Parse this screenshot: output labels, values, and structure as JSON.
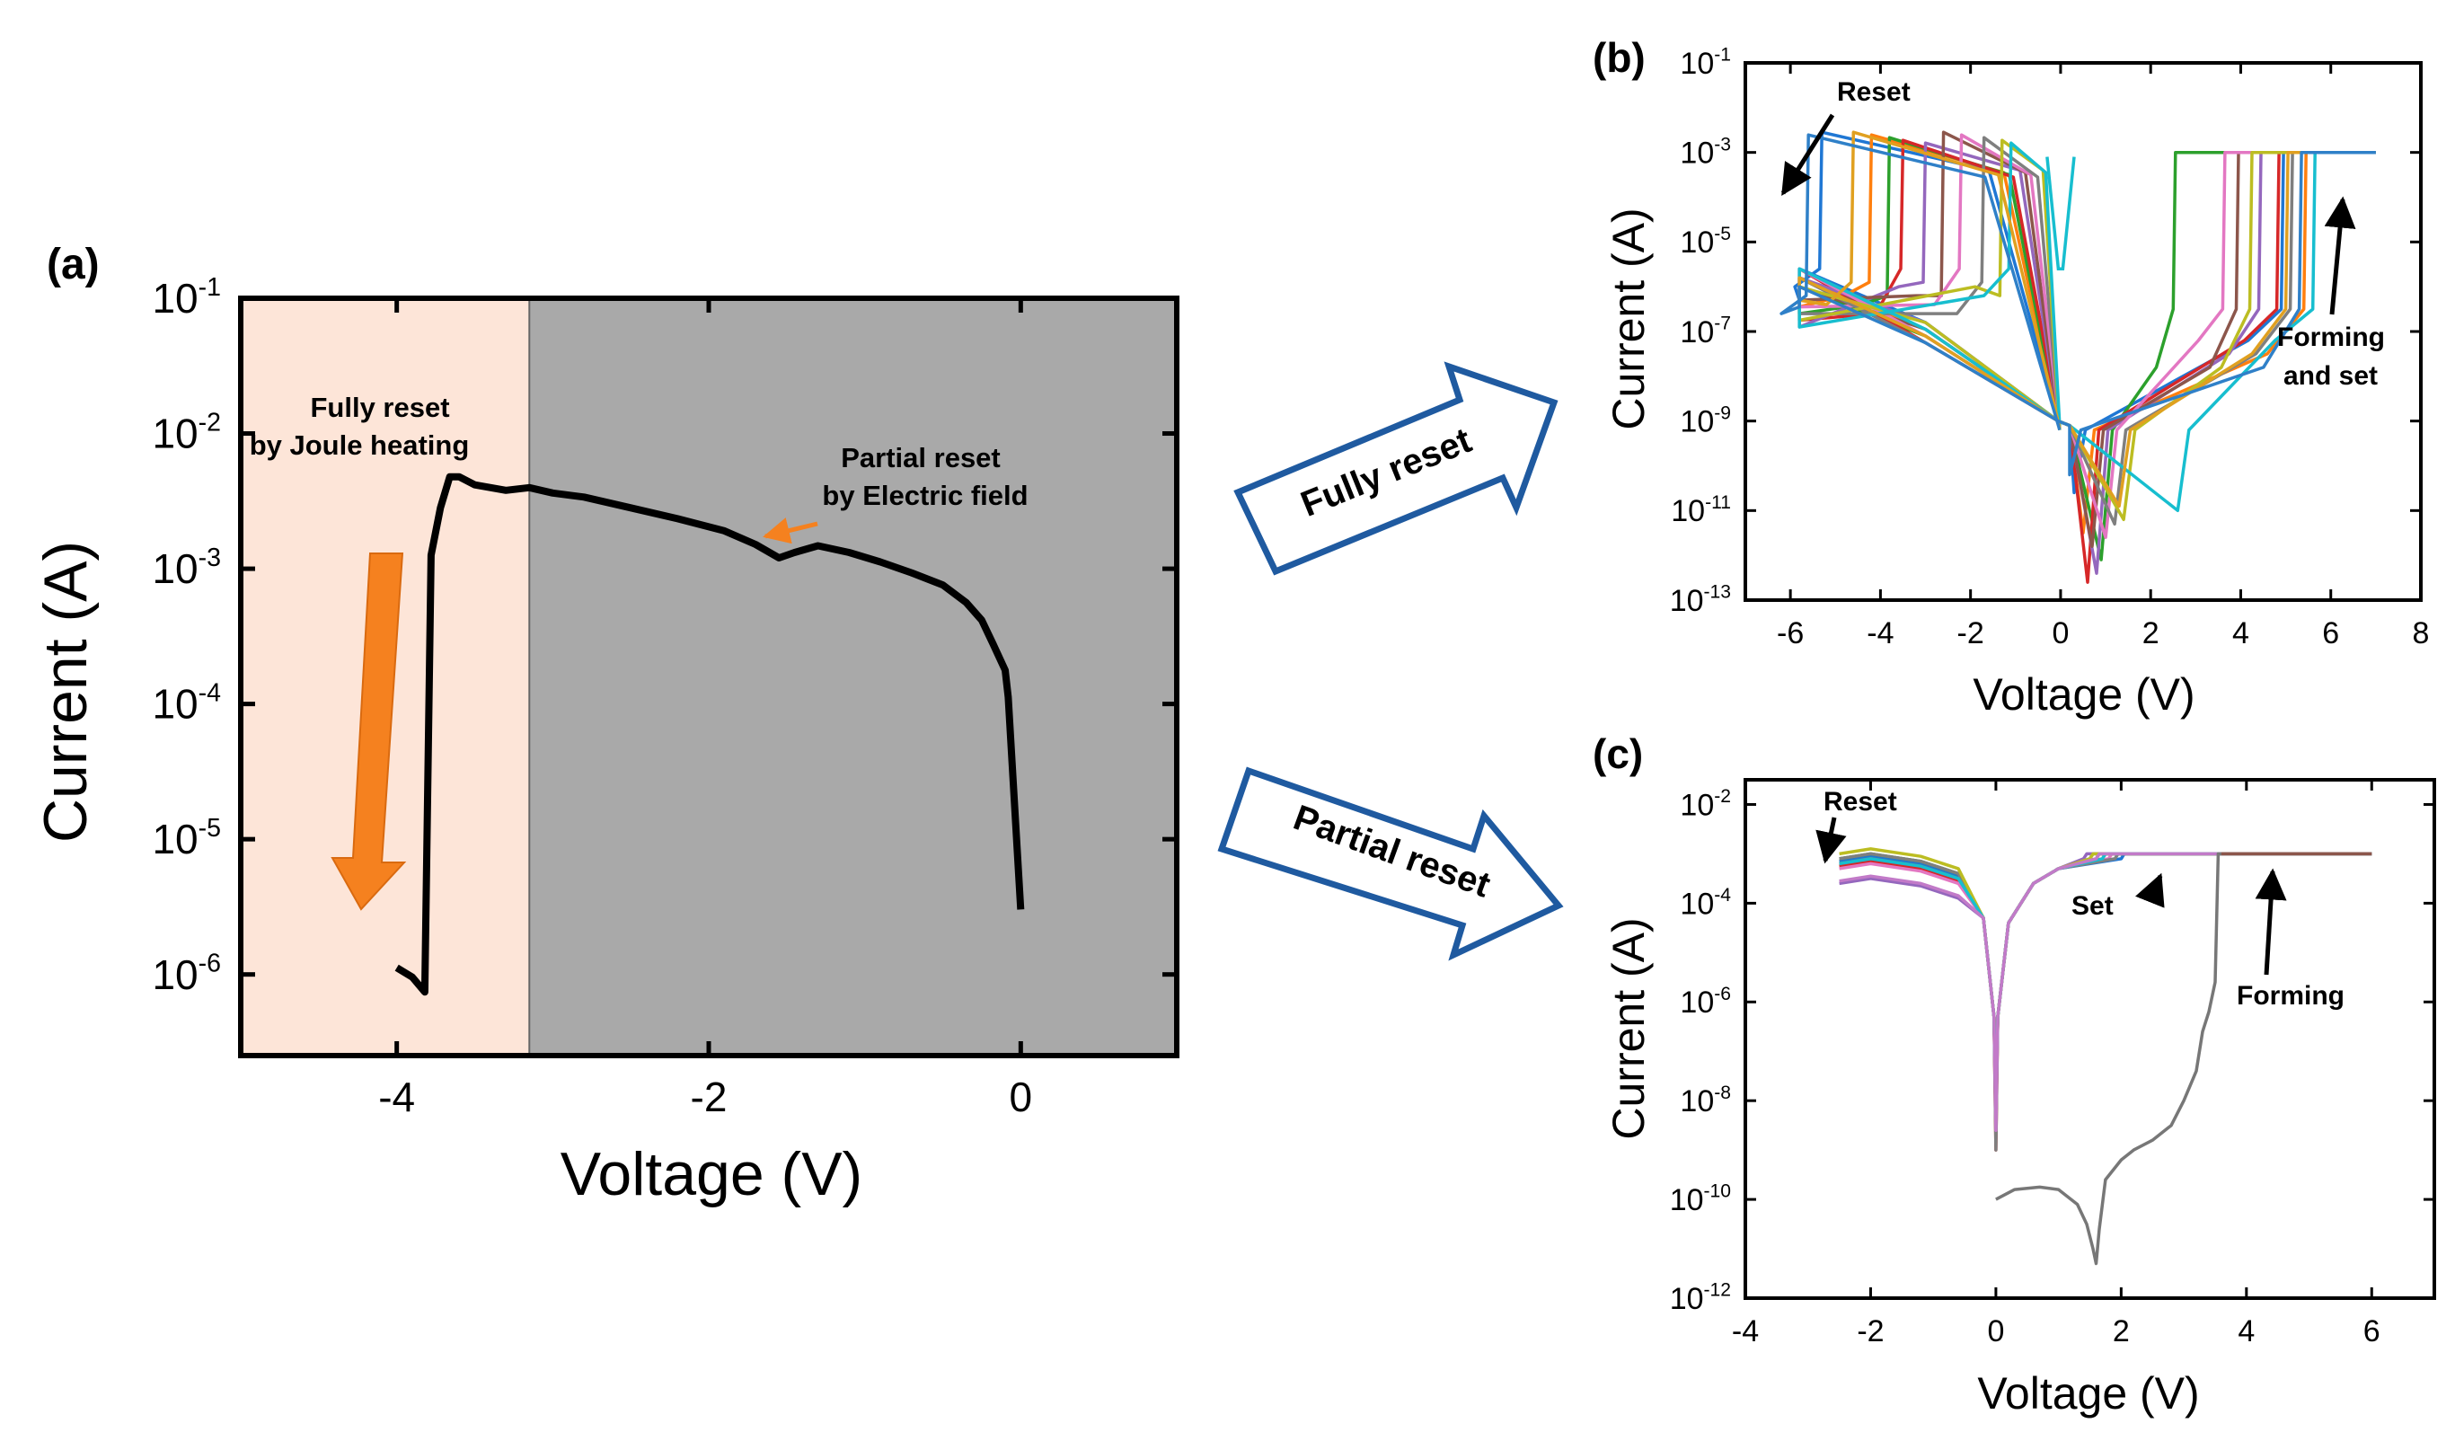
{
  "panels": {
    "a": {
      "label": "(a)"
    },
    "b": {
      "label": "(b)"
    },
    "c": {
      "label": "(c)"
    }
  },
  "banners": {
    "fully": "Fully reset",
    "partial": "Partial reset"
  },
  "colors": {
    "shade_left": "#fde5d8",
    "shade_right": "#a9a9a9",
    "curve_main": "#000000",
    "arrow_orange": "#f5811f",
    "banner_border": "#1f5aa0"
  },
  "chart_data": [
    {
      "id": "a",
      "type": "line",
      "xlabel": "Voltage (V)",
      "ylabel": "Current (A)",
      "xlim": [
        -5.0,
        1.0
      ],
      "ylim_log10": [
        -6.6,
        -1.0
      ],
      "y_scale": "log",
      "x_ticks": [
        {
          "v": -4,
          "label": "-4"
        },
        {
          "v": -2,
          "label": "-2"
        },
        {
          "v": 0,
          "label": "0"
        }
      ],
      "y_ticks": [
        {
          "v": -1,
          "base": "10",
          "exp": "-1"
        },
        {
          "v": -2,
          "base": "10",
          "exp": "-2"
        },
        {
          "v": -3,
          "base": "10",
          "exp": "-3"
        },
        {
          "v": -4,
          "base": "10",
          "exp": "-4"
        },
        {
          "v": -5,
          "base": "10",
          "exp": "-5"
        },
        {
          "v": -6,
          "base": "10",
          "exp": "-6"
        }
      ],
      "regions": [
        {
          "x_from": -5.0,
          "x_to": -3.15,
          "name": "Fully reset"
        },
        {
          "x_from": -3.15,
          "x_to": 1.0,
          "name": "Partial reset"
        }
      ],
      "annotations": {
        "fully_line1": "Fully reset",
        "fully_line2": "by Joule heating",
        "partial_line1": "Partial reset",
        "partial_line2": "by Electric field"
      },
      "series": [
        {
          "x": [
            0.0,
            -0.08,
            -0.1,
            -0.18,
            -0.25,
            -0.35,
            -0.5,
            -0.7,
            -0.9,
            -1.1,
            -1.3,
            -1.45,
            -1.55,
            -1.7,
            -1.9,
            -2.2,
            -2.5,
            -2.8,
            -3.0,
            -3.15,
            -3.3,
            -3.5,
            -3.6,
            -3.66,
            -3.72,
            -3.78,
            -3.82,
            -3.9,
            -4.0
          ],
          "log10_y": [
            -5.52,
            -3.95,
            -3.75,
            -3.55,
            -3.38,
            -3.25,
            -3.12,
            -3.03,
            -2.95,
            -2.88,
            -2.83,
            -2.88,
            -2.92,
            -2.82,
            -2.72,
            -2.63,
            -2.55,
            -2.47,
            -2.44,
            -2.4,
            -2.42,
            -2.38,
            -2.32,
            -2.32,
            -2.55,
            -2.9,
            -6.13,
            -6.02,
            -5.95
          ]
        }
      ]
    },
    {
      "id": "b",
      "type": "line",
      "xlabel": "Voltage (V)",
      "ylabel": "Current (A)",
      "xlim": [
        -7.0,
        8.0
      ],
      "ylim_log10": [
        -13,
        -1
      ],
      "y_scale": "log",
      "x_ticks": [
        {
          "v": -6,
          "label": "-6"
        },
        {
          "v": -4,
          "label": "-4"
        },
        {
          "v": -2,
          "label": "-2"
        },
        {
          "v": 0,
          "label": "0"
        },
        {
          "v": 2,
          "label": "2"
        },
        {
          "v": 4,
          "label": "4"
        },
        {
          "v": 6,
          "label": "6"
        },
        {
          "v": 8,
          "label": "8"
        }
      ],
      "y_ticks": [
        {
          "v": -1,
          "base": "10",
          "exp": "-1"
        },
        {
          "v": -3,
          "base": "10",
          "exp": "-3"
        },
        {
          "v": -5,
          "base": "10",
          "exp": "-5"
        },
        {
          "v": -7,
          "base": "10",
          "exp": "-7"
        },
        {
          "v": -9,
          "base": "10",
          "exp": "-9"
        },
        {
          "v": -11,
          "base": "10",
          "exp": "-11"
        },
        {
          "v": -13,
          "base": "10",
          "exp": "-13"
        }
      ],
      "annotations": {
        "reset": "Reset",
        "forming_line1": "Forming",
        "forming_line2": "and set"
      },
      "series": [
        {
          "color": "#1f77d4",
          "reset_v": -5.3,
          "set_v": 4.9,
          "dip_v": 0.3,
          "dip_log": -10.6
        },
        {
          "color": "#ff7f0e",
          "reset_v": -4.2,
          "set_v": 5.4,
          "dip_v": 0.5,
          "dip_log": -11.5
        },
        {
          "color": "#2ca02c",
          "reset_v": -3.8,
          "set_v": 2.5,
          "dip_v": 0.9,
          "dip_log": -12.1
        },
        {
          "color": "#d62728",
          "reset_v": -3.5,
          "set_v": 4.8,
          "dip_v": 0.6,
          "dip_log": -12.6
        },
        {
          "color": "#9467bd",
          "reset_v": -3.0,
          "set_v": 4.4,
          "dip_v": 0.8,
          "dip_log": -12.4
        },
        {
          "color": "#8c564b",
          "reset_v": -2.6,
          "set_v": 3.9,
          "dip_v": 0.7,
          "dip_log": -11.8
        },
        {
          "color": "#e377c2",
          "reset_v": -2.2,
          "set_v": 3.6,
          "dip_v": 1.0,
          "dip_log": -11.6
        },
        {
          "color": "#7f7f7f",
          "reset_v": -1.7,
          "set_v": 5.1,
          "dip_v": 1.2,
          "dip_log": -11.3
        },
        {
          "color": "#bcbd22",
          "reset_v": -1.3,
          "set_v": 4.2,
          "dip_v": 1.4,
          "dip_log": -11.2
        },
        {
          "color": "#17becf",
          "reset_v": -1.1,
          "set_v": 5.6,
          "dip_v": 2.6,
          "dip_log": -11.0
        },
        {
          "color": "#e0a020",
          "reset_v": -4.6,
          "set_v": 5.0,
          "dip_v": 1.3,
          "dip_log": -10.9
        },
        {
          "color": "#2f80c8",
          "reset_v": -5.6,
          "set_v": 5.3,
          "dip_v": 0.2,
          "dip_log": -10.2
        }
      ],
      "compliance_log": -3.0,
      "forming_curve": {
        "color": "#17becf",
        "set_v": 7.0
      }
    },
    {
      "id": "c",
      "type": "line",
      "xlabel": "Voltage (V)",
      "ylabel": "Current (A)",
      "xlim": [
        -4.0,
        7.0
      ],
      "ylim_log10": [
        -12,
        -1.5
      ],
      "y_scale": "log",
      "x_ticks": [
        {
          "v": -4,
          "label": "-4"
        },
        {
          "v": -2,
          "label": "-2"
        },
        {
          "v": 0,
          "label": "0"
        },
        {
          "v": 2,
          "label": "2"
        },
        {
          "v": 4,
          "label": "4"
        },
        {
          "v": 6,
          "label": "6"
        }
      ],
      "y_ticks": [
        {
          "v": -2,
          "base": "10",
          "exp": "-2"
        },
        {
          "v": -4,
          "base": "10",
          "exp": "-4"
        },
        {
          "v": -6,
          "base": "10",
          "exp": "-6"
        },
        {
          "v": -8,
          "base": "10",
          "exp": "-8"
        },
        {
          "v": -10,
          "base": "10",
          "exp": "-10"
        },
        {
          "v": -12,
          "base": "10",
          "exp": "-12"
        }
      ],
      "annotations": {
        "reset": "Reset",
        "set": "Set",
        "forming": "Forming"
      },
      "compliance_log": -3.0,
      "cycles": [
        {
          "color": "#1f77d4",
          "end_log": -3.15,
          "set_v": 2.0
        },
        {
          "color": "#ff7f0e",
          "end_log": -3.2,
          "set_v": 1.6
        },
        {
          "color": "#2ca02c",
          "end_log": -3.1,
          "set_v": 1.5
        },
        {
          "color": "#d62728",
          "end_log": -3.25,
          "set_v": 1.7
        },
        {
          "color": "#9467bd",
          "end_log": -3.6,
          "set_v": 1.4
        },
        {
          "color": "#8c564b",
          "end_log": -3.2,
          "set_v": 1.6
        },
        {
          "color": "#e377c2",
          "end_log": -3.3,
          "set_v": 1.8
        },
        {
          "color": "#7f7f7f",
          "end_log": -3.1,
          "set_v": 1.9
        },
        {
          "color": "#bcbd22",
          "end_log": -3.0,
          "set_v": 1.5
        },
        {
          "color": "#17becf",
          "end_log": -3.2,
          "set_v": 1.7
        },
        {
          "color": "#c27ac8",
          "end_log": -3.55,
          "set_v": 1.6
        }
      ],
      "forming_curve": {
        "color": "#777777",
        "x": [
          0.0,
          0.3,
          0.7,
          1.0,
          1.3,
          1.45,
          1.55,
          1.6,
          1.65,
          1.75,
          2.0,
          2.2,
          2.5,
          2.8,
          3.0,
          3.2,
          3.3,
          3.4,
          3.5,
          3.55,
          3.6,
          4.5,
          6.0
        ],
        "log10_y": [
          -10.0,
          -9.8,
          -9.75,
          -9.8,
          -10.1,
          -10.5,
          -11.0,
          -11.3,
          -10.6,
          -9.6,
          -9.2,
          -9.0,
          -8.8,
          -8.5,
          -8.0,
          -7.4,
          -6.6,
          -6.2,
          -5.6,
          -3.0,
          -3.0,
          -3.0,
          -3.0
        ]
      }
    }
  ]
}
